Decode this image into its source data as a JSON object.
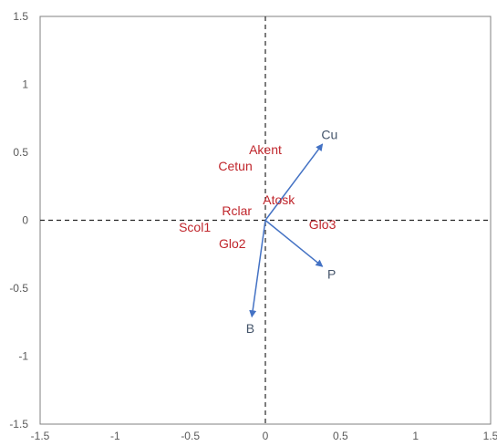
{
  "chart_data": {
    "type": "scatter",
    "title": "",
    "xlabel": "",
    "ylabel": "",
    "xlim": [
      -1.5,
      1.5
    ],
    "ylim": [
      -1.5,
      1.5
    ],
    "x_ticks": [
      "-1.5",
      "-1",
      "-0.5",
      "0",
      "0.5",
      "1",
      "1.5"
    ],
    "y_ticks": [
      "-1.5",
      "-1",
      "-0.5",
      "0",
      "0.5",
      "1",
      "1.5"
    ],
    "grid": false,
    "reference_lines": "dashed lines at x = 0 and y = 0",
    "colors": {
      "points": "#c0262c",
      "vectors": "#4472c4",
      "vector_labels": "#44546a"
    },
    "points": [
      {
        "label": "Akent",
        "x": 0.0,
        "y": 0.52
      },
      {
        "label": "Cetun",
        "x": -0.2,
        "y": 0.4
      },
      {
        "label": "Atosk",
        "x": 0.09,
        "y": 0.15
      },
      {
        "label": "Rclar",
        "x": -0.19,
        "y": 0.07
      },
      {
        "label": "Scol1",
        "x": -0.47,
        "y": -0.05
      },
      {
        "label": "Glo2",
        "x": -0.22,
        "y": -0.17
      },
      {
        "label": "Glo3",
        "x": 0.38,
        "y": -0.03
      }
    ],
    "vectors": [
      {
        "label": "Cu",
        "x": 0.38,
        "y": 0.56
      },
      {
        "label": "P",
        "x": 0.38,
        "y": -0.34
      },
      {
        "label": "B",
        "x": -0.09,
        "y": -0.71
      }
    ]
  }
}
